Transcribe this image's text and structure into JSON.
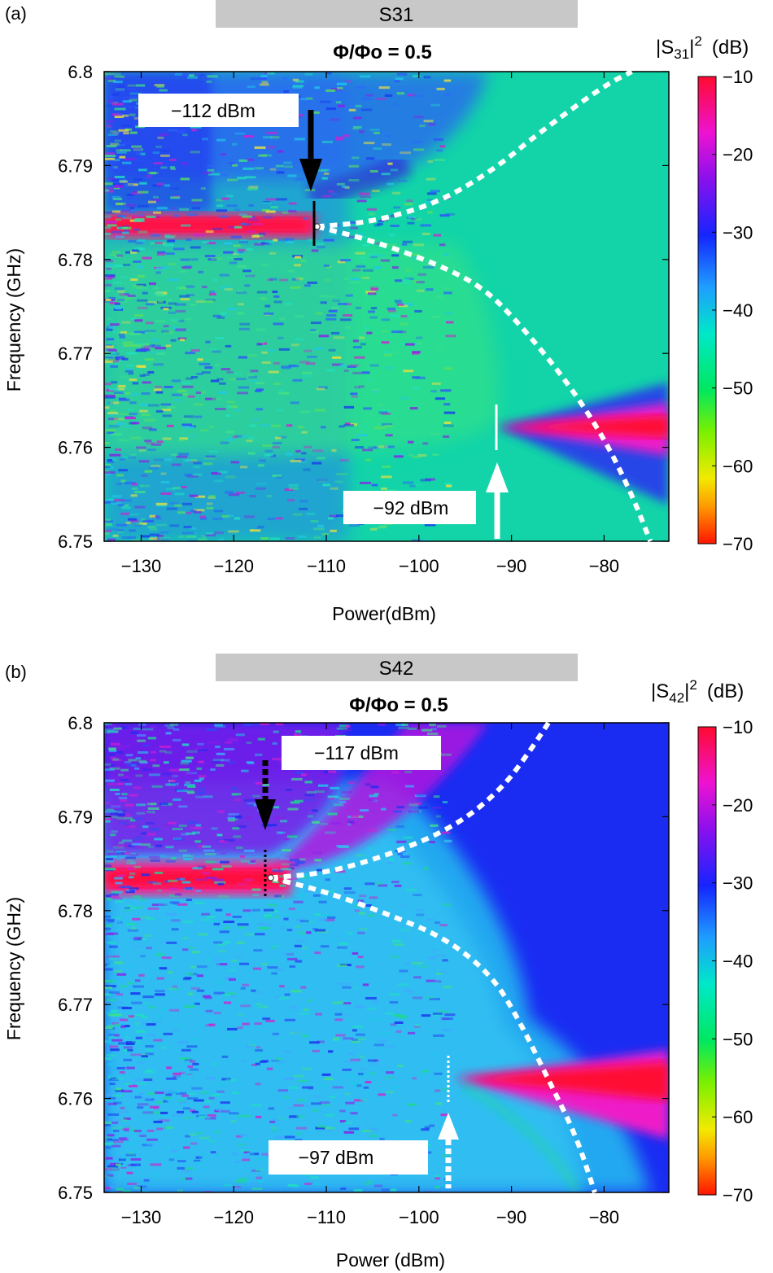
{
  "chart_data": [
    {
      "type": "heatmap",
      "panel_label": "(a)",
      "banner": "S31",
      "title": "Φ/Φo = 0.5",
      "xlabel": "Power(dBm)",
      "ylabel": "Frequency (GHz)",
      "xlim": [
        -134,
        -73
      ],
      "ylim": [
        6.75,
        6.8
      ],
      "xticks": [
        -130,
        -120,
        -110,
        -100,
        -90,
        -80
      ],
      "yticks": [
        6.75,
        6.76,
        6.77,
        6.78,
        6.79,
        6.8
      ],
      "colorbar": {
        "label_base": "|S",
        "label_sub": "31",
        "label_tail": "|",
        "label_sup": "2",
        "label_unit": "(dB)",
        "range": [
          -70,
          -10
        ],
        "ticks": [
          -10,
          -20,
          -30,
          -40,
          -50,
          -60,
          -70
        ]
      },
      "resonance_low_power_GHz": 6.7835,
      "resonance_high_power_GHz": 6.762,
      "bifurcation_dashed": {
        "start": [
          -111,
          6.7835
        ],
        "upper_branch": [
          [
            -111,
            6.7835
          ],
          [
            -105,
            6.784
          ],
          [
            -98,
            6.786
          ],
          [
            -92,
            6.7895
          ],
          [
            -87,
            6.7935
          ],
          [
            -80,
            6.7985
          ],
          [
            -77,
            6.8
          ]
        ],
        "lower_branch": [
          [
            -111,
            6.7835
          ],
          [
            -105,
            6.782
          ],
          [
            -98,
            6.7795
          ],
          [
            -93,
            6.777
          ],
          [
            -89,
            6.773
          ],
          [
            -84,
            6.767
          ],
          [
            -80,
            6.761
          ],
          [
            -77,
            6.755
          ],
          [
            -75,
            6.75
          ]
        ]
      },
      "annotations": [
        {
          "text": "−112 dBm",
          "x": -112,
          "arrow": "solid-black-down",
          "freq": 6.7835
        },
        {
          "text": "−92 dBm",
          "x": -92,
          "arrow": "solid-white-up",
          "freq": 6.762
        }
      ]
    },
    {
      "type": "heatmap",
      "panel_label": "(b)",
      "banner": "S42",
      "title": "Φ/Φo = 0.5",
      "xlabel": "Power (dBm)",
      "ylabel": "Frequency (GHz)",
      "xlim": [
        -134,
        -73
      ],
      "ylim": [
        6.75,
        6.8
      ],
      "xticks": [
        -130,
        -120,
        -110,
        -100,
        -90,
        -80
      ],
      "yticks": [
        6.75,
        6.76,
        6.77,
        6.78,
        6.79,
        6.8
      ],
      "colorbar": {
        "label_base": "|S",
        "label_sub": "42",
        "label_tail": "|",
        "label_sup": "2",
        "label_unit": "(dB)",
        "range": [
          -70,
          -10
        ],
        "ticks": [
          -10,
          -20,
          -30,
          -40,
          -50,
          -60,
          -70
        ]
      },
      "resonance_low_power_GHz": 6.7835,
      "resonance_high_power_GHz": 6.762,
      "bifurcation_dashed": {
        "start": [
          -116,
          6.7835
        ],
        "upper_branch": [
          [
            -116,
            6.7835
          ],
          [
            -110,
            6.784
          ],
          [
            -103,
            6.786
          ],
          [
            -96,
            6.789
          ],
          [
            -91,
            6.793
          ],
          [
            -88,
            6.797
          ],
          [
            -86,
            6.8
          ]
        ],
        "lower_branch": [
          [
            -116,
            6.7835
          ],
          [
            -110,
            6.782
          ],
          [
            -103,
            6.7795
          ],
          [
            -97,
            6.777
          ],
          [
            -92,
            6.773
          ],
          [
            -89,
            6.768
          ],
          [
            -86,
            6.762
          ],
          [
            -83,
            6.756
          ],
          [
            -81,
            6.75
          ]
        ]
      },
      "annotations": [
        {
          "text": "−117 dBm",
          "x": -117,
          "arrow": "dashed-black-down",
          "freq": 6.7835
        },
        {
          "text": "−97 dBm",
          "x": -97,
          "arrow": "dashed-white-up",
          "freq": 6.762
        }
      ]
    }
  ]
}
